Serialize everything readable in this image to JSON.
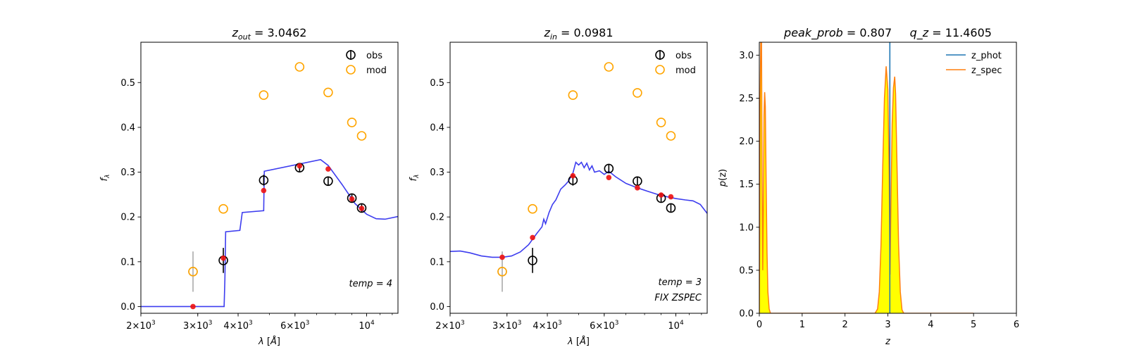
{
  "chart_data": [
    {
      "type": "scatter",
      "title": "z_out = 3.0462",
      "title_math": {
        "var": "z",
        "sub": "out",
        "rest": " = 3.0462"
      },
      "xlabel": "λ [Å]",
      "ylabel": "f_λ",
      "ylabel_math": {
        "var": "f",
        "sub": "λ"
      },
      "xscale": "log",
      "xlim": [
        2000,
        12500
      ],
      "ylim": [
        -0.015,
        0.59
      ],
      "x_ticks": [
        {
          "value": 2000,
          "base": "2×10",
          "exp": "3"
        },
        {
          "value": 3000,
          "base": "3×10",
          "exp": "3"
        },
        {
          "value": 4000,
          "base": "4×10",
          "exp": "3"
        },
        {
          "value": 6000,
          "base": "6×10",
          "exp": "3"
        },
        {
          "value": 10000,
          "base": "10",
          "exp": "4"
        }
      ],
      "y_ticks": [
        "0.0",
        "0.1",
        "0.2",
        "0.3",
        "0.4",
        "0.5"
      ],
      "y_tick_values": [
        0.0,
        0.1,
        0.2,
        0.3,
        0.4,
        0.5
      ],
      "legend": {
        "position": "upper-right",
        "entries": [
          {
            "label": "obs",
            "color": "#000000"
          },
          {
            "label": "mod",
            "color": "#ffa500"
          }
        ]
      },
      "annotations": [
        "temp = 4"
      ],
      "series": [
        {
          "name": "obs",
          "color": "#000000",
          "points": [
            {
              "x": 3600,
              "y": 0.103,
              "err": 0.028
            },
            {
              "x": 4800,
              "y": 0.282,
              "err": 0.012
            },
            {
              "x": 6200,
              "y": 0.31,
              "err": 0.01
            },
            {
              "x": 7600,
              "y": 0.28,
              "err": 0.01
            },
            {
              "x": 9000,
              "y": 0.242,
              "err": 0.01
            },
            {
              "x": 9650,
              "y": 0.22,
              "err": 0.01
            }
          ]
        },
        {
          "name": "obs_excluded",
          "color": "#aaaaaa",
          "points": [
            {
              "x": 2900,
              "y": 0.078,
              "err": 0.045
            }
          ]
        },
        {
          "name": "mod",
          "color": "#ffa500",
          "points": [
            {
              "x": 2900,
              "y": 0.078
            },
            {
              "x": 3600,
              "y": 0.218
            },
            {
              "x": 4800,
              "y": 0.472
            },
            {
              "x": 6200,
              "y": 0.535
            },
            {
              "x": 7600,
              "y": 0.478
            },
            {
              "x": 9000,
              "y": 0.411
            },
            {
              "x": 9650,
              "y": 0.381
            }
          ]
        },
        {
          "name": "model_flux",
          "color": "#ee1111",
          "points": [
            {
              "x": 2900,
              "y": 0.0
            },
            {
              "x": 3600,
              "y": 0.108
            },
            {
              "x": 4800,
              "y": 0.259
            },
            {
              "x": 6200,
              "y": 0.314
            },
            {
              "x": 7600,
              "y": 0.307
            },
            {
              "x": 9000,
              "y": 0.24
            },
            {
              "x": 9650,
              "y": 0.219
            }
          ]
        }
      ],
      "template_line": {
        "color": "#3333ee",
        "points": [
          [
            2000,
            0.0
          ],
          [
            3620,
            0.0
          ],
          [
            3640,
            0.06
          ],
          [
            3660,
            0.167
          ],
          [
            4050,
            0.17
          ],
          [
            4120,
            0.21
          ],
          [
            4800,
            0.214
          ],
          [
            4820,
            0.302
          ],
          [
            7200,
            0.328
          ],
          [
            7600,
            0.315
          ],
          [
            8400,
            0.272
          ],
          [
            9200,
            0.23
          ],
          [
            10000,
            0.206
          ],
          [
            10700,
            0.196
          ],
          [
            11400,
            0.195
          ],
          [
            12500,
            0.201
          ]
        ]
      }
    },
    {
      "type": "scatter",
      "title": "z_in = 0.0981",
      "title_math": {
        "var": "z",
        "sub": "in",
        "rest": " = 0.0981"
      },
      "xlabel": "λ [Å]",
      "ylabel": "f_λ",
      "ylabel_math": {
        "var": "f",
        "sub": "λ"
      },
      "xscale": "log",
      "xlim": [
        2000,
        12500
      ],
      "ylim": [
        -0.015,
        0.59
      ],
      "x_ticks": [
        {
          "value": 2000,
          "base": "2×10",
          "exp": "3"
        },
        {
          "value": 3000,
          "base": "3×10",
          "exp": "3"
        },
        {
          "value": 4000,
          "base": "4×10",
          "exp": "3"
        },
        {
          "value": 6000,
          "base": "6×10",
          "exp": "3"
        },
        {
          "value": 10000,
          "base": "10",
          "exp": "4"
        }
      ],
      "y_ticks": [
        "0.0",
        "0.1",
        "0.2",
        "0.3",
        "0.4",
        "0.5"
      ],
      "y_tick_values": [
        0.0,
        0.1,
        0.2,
        0.3,
        0.4,
        0.5
      ],
      "legend": {
        "position": "upper-right",
        "entries": [
          {
            "label": "obs",
            "color": "#000000"
          },
          {
            "label": "mod",
            "color": "#ffa500"
          }
        ]
      },
      "annotations": [
        "temp = 3",
        "FIX ZSPEC"
      ],
      "series": [
        {
          "name": "obs",
          "color": "#000000",
          "points": [
            {
              "x": 3600,
              "y": 0.103,
              "err": 0.028
            },
            {
              "x": 4800,
              "y": 0.282,
              "err": 0.012
            },
            {
              "x": 6200,
              "y": 0.308,
              "err": 0.01
            },
            {
              "x": 7600,
              "y": 0.28,
              "err": 0.01
            },
            {
              "x": 9000,
              "y": 0.242,
              "err": 0.01
            },
            {
              "x": 9650,
              "y": 0.22,
              "err": 0.01
            }
          ]
        },
        {
          "name": "obs_excluded",
          "color": "#aaaaaa",
          "points": [
            {
              "x": 2900,
              "y": 0.078,
              "err": 0.045
            }
          ]
        },
        {
          "name": "mod",
          "color": "#ffa500",
          "points": [
            {
              "x": 2900,
              "y": 0.078
            },
            {
              "x": 3600,
              "y": 0.218
            },
            {
              "x": 4800,
              "y": 0.472
            },
            {
              "x": 6200,
              "y": 0.535
            },
            {
              "x": 7600,
              "y": 0.477
            },
            {
              "x": 9000,
              "y": 0.411
            },
            {
              "x": 9650,
              "y": 0.381
            }
          ]
        },
        {
          "name": "model_flux",
          "color": "#ee1111",
          "points": [
            {
              "x": 2900,
              "y": 0.11
            },
            {
              "x": 3600,
              "y": 0.154
            },
            {
              "x": 4800,
              "y": 0.292
            },
            {
              "x": 6200,
              "y": 0.288
            },
            {
              "x": 7600,
              "y": 0.265
            },
            {
              "x": 9000,
              "y": 0.249
            },
            {
              "x": 9650,
              "y": 0.245
            }
          ]
        }
      ],
      "template_line": {
        "color": "#3333ee",
        "points": [
          [
            2000,
            0.123
          ],
          [
            2150,
            0.124
          ],
          [
            2300,
            0.12
          ],
          [
            2500,
            0.113
          ],
          [
            2700,
            0.11
          ],
          [
            2900,
            0.11
          ],
          [
            3100,
            0.113
          ],
          [
            3300,
            0.122
          ],
          [
            3500,
            0.138
          ],
          [
            3700,
            0.162
          ],
          [
            3850,
            0.178
          ],
          [
            3900,
            0.195
          ],
          [
            3950,
            0.185
          ],
          [
            4050,
            0.21
          ],
          [
            4150,
            0.228
          ],
          [
            4250,
            0.238
          ],
          [
            4400,
            0.262
          ],
          [
            4550,
            0.272
          ],
          [
            4650,
            0.28
          ],
          [
            4800,
            0.298
          ],
          [
            4900,
            0.322
          ],
          [
            5000,
            0.316
          ],
          [
            5100,
            0.322
          ],
          [
            5200,
            0.31
          ],
          [
            5300,
            0.32
          ],
          [
            5400,
            0.305
          ],
          [
            5500,
            0.314
          ],
          [
            5600,
            0.3
          ],
          [
            5800,
            0.303
          ],
          [
            6000,
            0.295
          ],
          [
            6200,
            0.302
          ],
          [
            6500,
            0.29
          ],
          [
            7000,
            0.275
          ],
          [
            7600,
            0.265
          ],
          [
            8200,
            0.257
          ],
          [
            8800,
            0.25
          ],
          [
            9400,
            0.245
          ],
          [
            10000,
            0.241
          ],
          [
            10700,
            0.238
          ],
          [
            11300,
            0.236
          ],
          [
            11900,
            0.228
          ],
          [
            12500,
            0.208
          ]
        ]
      }
    },
    {
      "type": "area",
      "title": "peak_prob = 0.807     q_z = 11.4605",
      "title_math": {
        "part1_var": "peak_prob",
        "part1_rest": " = 0.807",
        "part2_var": "q_z",
        "part2_rest": " = 11.4605"
      },
      "xlabel": "z",
      "ylabel": "p(z)",
      "ylabel_math": {
        "var": "p",
        "rest": "(z)"
      },
      "xlim": [
        0,
        6
      ],
      "ylim": [
        0,
        3.15
      ],
      "x_ticks": [
        "0",
        "1",
        "2",
        "3",
        "4",
        "5",
        "6"
      ],
      "x_tick_values": [
        0,
        1,
        2,
        3,
        4,
        5,
        6
      ],
      "y_ticks": [
        "0.0",
        "0.5",
        "1.0",
        "1.5",
        "2.0",
        "2.5",
        "3.0"
      ],
      "y_tick_values": [
        0.0,
        0.5,
        1.0,
        1.5,
        2.0,
        2.5,
        3.0
      ],
      "legend": {
        "position": "upper-right",
        "entries": [
          {
            "label": "z_phot",
            "color": "#1f77b4"
          },
          {
            "label": "z_spec",
            "color": "#ff7f0e"
          }
        ]
      },
      "series": [
        {
          "name": "z_phot",
          "color": "#1f77b4",
          "type": "vline",
          "x": 3.0462
        },
        {
          "name": "z_spec",
          "color": "#ff7f0e",
          "fill": "#ffff00",
          "points": [
            [
              0.0,
              0.0
            ],
            [
              0.01,
              1.0
            ],
            [
              0.02,
              2.5
            ],
            [
              0.035,
              3.2
            ],
            [
              0.05,
              3.3
            ],
            [
              0.065,
              1.6
            ],
            [
              0.08,
              0.5
            ],
            [
              0.095,
              1.2
            ],
            [
              0.11,
              2.3
            ],
            [
              0.125,
              2.57
            ],
            [
              0.14,
              2.4
            ],
            [
              0.16,
              1.5
            ],
            [
              0.18,
              0.7
            ],
            [
              0.2,
              0.25
            ],
            [
              0.23,
              0.05
            ],
            [
              0.26,
              0.0
            ],
            [
              2.7,
              0.0
            ],
            [
              2.76,
              0.05
            ],
            [
              2.8,
              0.25
            ],
            [
              2.84,
              0.8
            ],
            [
              2.88,
              1.7
            ],
            [
              2.92,
              2.5
            ],
            [
              2.96,
              2.87
            ],
            [
              3.0,
              2.6
            ],
            [
              3.03,
              1.6
            ],
            [
              3.05,
              0.45
            ],
            [
              3.07,
              1.2
            ],
            [
              3.1,
              2.2
            ],
            [
              3.13,
              2.62
            ],
            [
              3.16,
              2.75
            ],
            [
              3.18,
              2.55
            ],
            [
              3.21,
              1.8
            ],
            [
              3.25,
              0.8
            ],
            [
              3.29,
              0.25
            ],
            [
              3.33,
              0.04
            ],
            [
              3.37,
              0.0
            ],
            [
              5.0,
              0.0
            ]
          ]
        }
      ]
    }
  ]
}
